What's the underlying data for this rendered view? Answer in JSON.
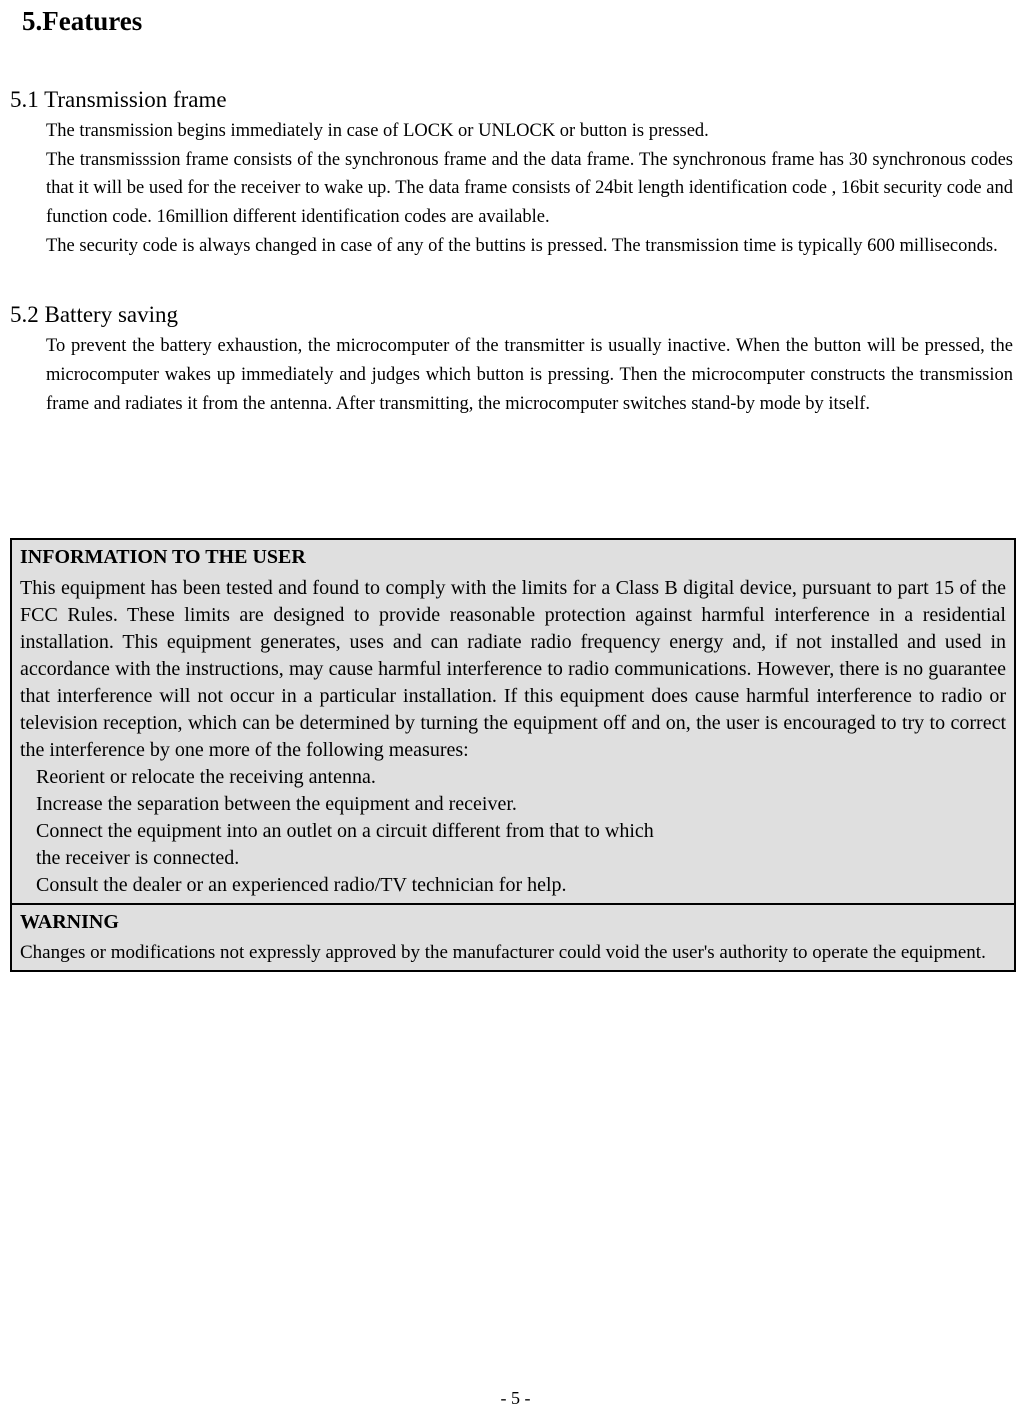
{
  "heading_main": "5.Features",
  "section1": {
    "heading": "5.1 Transmission frame",
    "p1": "The transmission begins immediately in case of LOCK or UNLOCK or button is pressed.",
    "p2": "The transmisssion frame consists of the synchronous frame and the data frame. The synchronous frame has 30 synchronous codes that it will be used for the receiver to wake up. The data frame consists of 24bit length identification code , 16bit security code and function code. 16million different identification codes are available.",
    "p3": "The security code is always changed in case of any of the buttins is pressed. The transmission time is typically 600 milliseconds."
  },
  "section2": {
    "heading": "5.2 Battery saving",
    "p1": "To prevent the battery exhaustion, the microcomputer of the transmitter is usually inactive. When the button will be pressed, the microcomputer wakes up immediately and judges which button is pressing. Then the microcomputer constructs the transmission frame and radiates it from the antenna. After transmitting, the microcomputer switches stand-by mode by itself."
  },
  "info": {
    "title": "INFORMATION TO THE USER",
    "body": "This equipment has been tested and found to comply with the limits for a Class B digital device, pursuant to part 15 of the FCC Rules. These limits are designed to provide reasonable protection against harmful interference in a residential installation. This equipment generates, uses and can radiate radio frequency energy and, if not installed and used in accordance with the instructions, may cause harmful interference to radio communications. However, there is no guarantee that interference will not occur in a particular installation. If this equipment does cause harmful interference to radio or television reception, which can be determined by turning the equipment off and on, the user is encouraged to try to correct the interference by one more of the following measures:",
    "m1": "Reorient or relocate the receiving antenna.",
    "m2": "Increase the separation between the equipment and receiver.",
    "m3": "Connect the equipment into an outlet on a circuit different from that to which",
    "m4": "the receiver is connected.",
    "m5": "Consult the dealer or an experienced radio/TV technician for help."
  },
  "warning": {
    "title": "WARNING",
    "body": "Changes or modifications not expressly approved by the manufacturer could void the user's authority to operate the equipment."
  },
  "page_number": "- 5 -"
}
